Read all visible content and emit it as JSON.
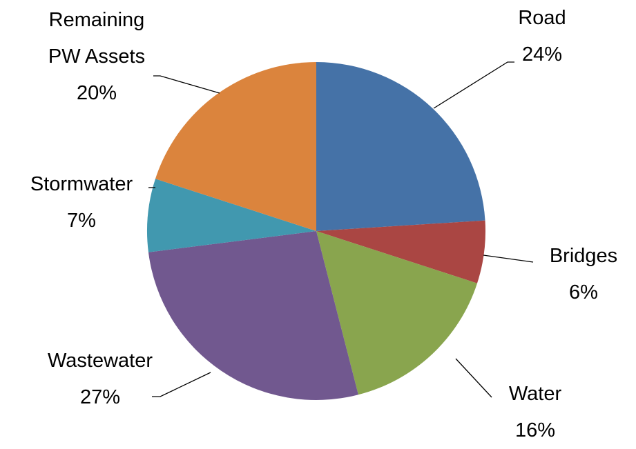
{
  "chart_data": {
    "type": "pie",
    "categories": [
      "Road",
      "Bridges",
      "Water",
      "Wastewater",
      "Stormwater",
      "Remaining PW Assets"
    ],
    "values": [
      24,
      6,
      16,
      27,
      7,
      20
    ],
    "value_labels": [
      "24%",
      "6%",
      "16%",
      "27%",
      "7%",
      "20%"
    ],
    "colors": [
      "#4572a7",
      "#aa4643",
      "#89a54e",
      "#71588f",
      "#4198af",
      "#db843d"
    ]
  }
}
